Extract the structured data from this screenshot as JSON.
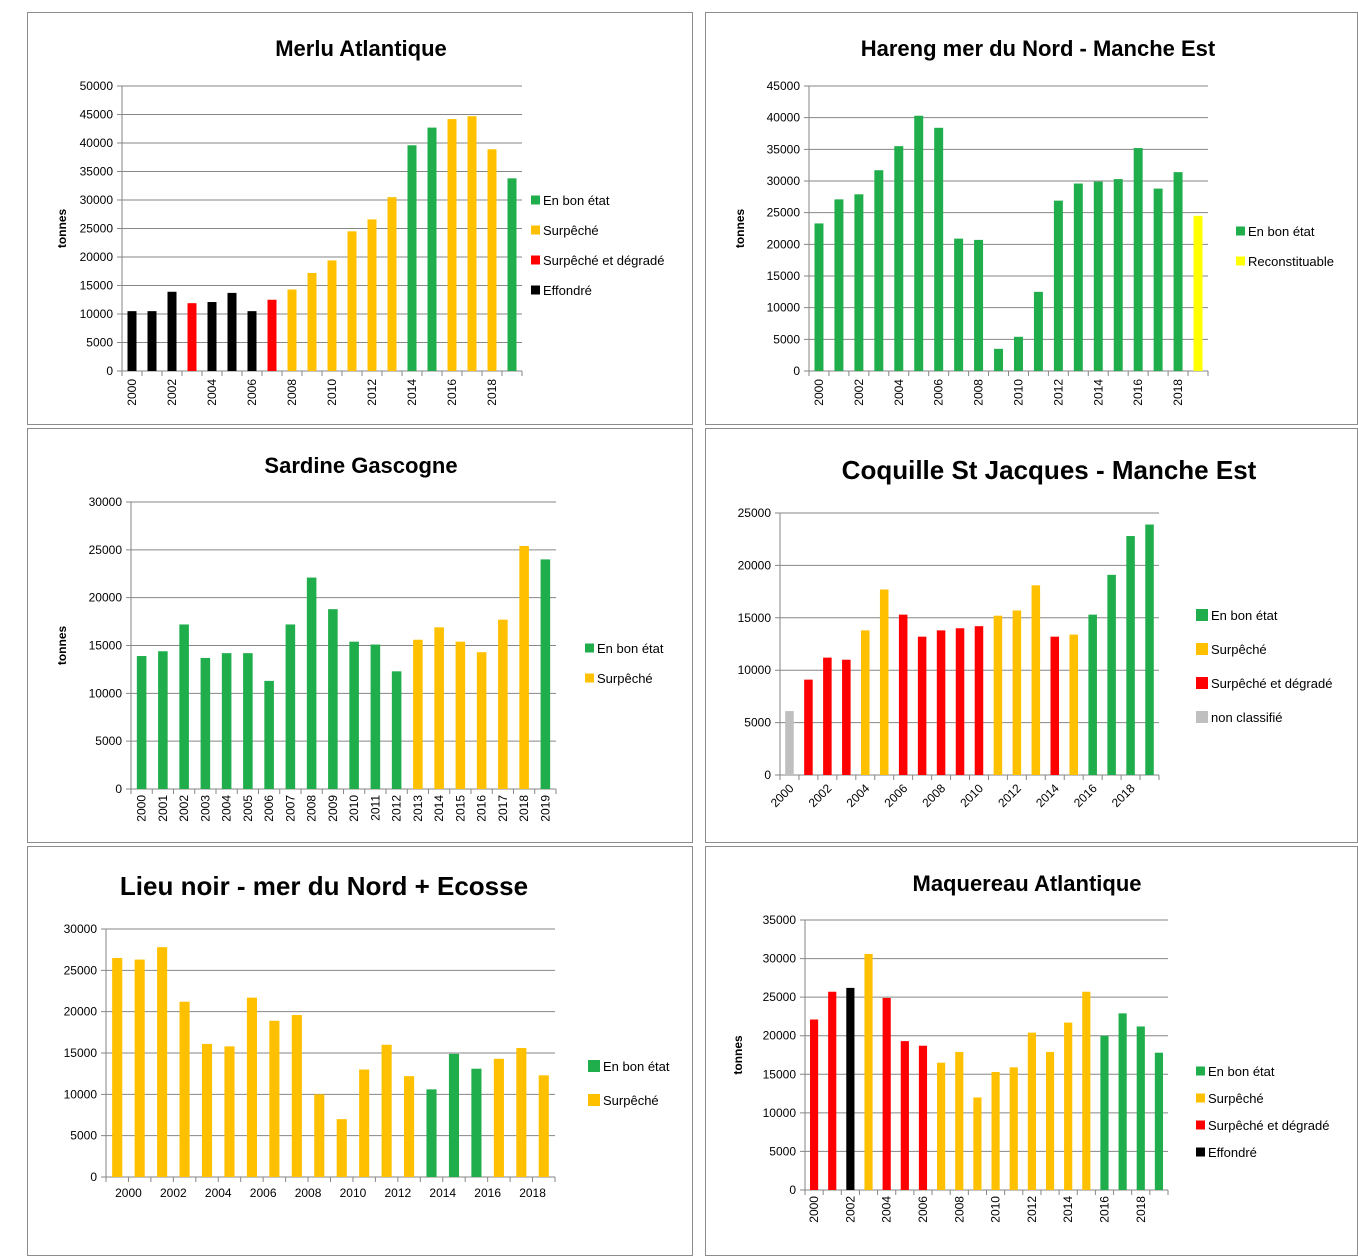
{
  "colors": {
    "En bon état": "#1fae4b",
    "Surpêché": "#ffc000",
    "Surpêché et dégradé": "#ff0000",
    "Effondré": "#000000",
    "Reconstituable": "#ffff00",
    "non classifié": "#bfbfbf"
  },
  "chart_data": [
    {
      "type": "bar",
      "title": "Merlu Atlantique",
      "ylabel": "tonnes",
      "xlabel": "",
      "ylim": [
        0,
        50000
      ],
      "yticks": [
        0,
        5000,
        10000,
        15000,
        20000,
        25000,
        30000,
        35000,
        40000,
        45000,
        50000
      ],
      "categories": [
        "2000",
        "2001",
        "2002",
        "2003",
        "2004",
        "2005",
        "2006",
        "2007",
        "2008",
        "2009",
        "2010",
        "2011",
        "2012",
        "2013",
        "2014",
        "2015",
        "2016",
        "2017",
        "2018",
        "2019"
      ],
      "xtick_labels": [
        "2000",
        "",
        "2002",
        "",
        "2004",
        "",
        "2006",
        "",
        "2008",
        "",
        "2010",
        "",
        "2012",
        "",
        "2014",
        "",
        "2016",
        "",
        "2018",
        ""
      ],
      "tick_rotation": -90,
      "values": [
        10500,
        10500,
        13900,
        11900,
        12100,
        13700,
        10500,
        12500,
        14300,
        17200,
        19400,
        24500,
        26600,
        30500,
        39600,
        42700,
        44200,
        44700,
        38900,
        33800
      ],
      "status": [
        "Effondré",
        "Effondré",
        "Effondré",
        "Surpêché et dégradé",
        "Effondré",
        "Effondré",
        "Effondré",
        "Surpêché et dégradé",
        "Surpêché",
        "Surpêché",
        "Surpêché",
        "Surpêché",
        "Surpêché",
        "Surpêché",
        "En bon état",
        "En bon état",
        "Surpêché",
        "Surpêché",
        "Surpêché",
        "En bon état"
      ],
      "legend": [
        "En bon état",
        "Surpêché",
        "Surpêché et dégradé",
        "Effondré"
      ],
      "legend_position": "right",
      "grid": true
    },
    {
      "type": "bar",
      "title": "Hareng mer du Nord - Manche Est",
      "ylabel": "tonnes",
      "xlabel": "",
      "ylim": [
        0,
        45000
      ],
      "yticks": [
        0,
        5000,
        10000,
        15000,
        20000,
        25000,
        30000,
        35000,
        40000,
        45000
      ],
      "categories": [
        "2000",
        "2001",
        "2002",
        "2003",
        "2004",
        "2005",
        "2006",
        "2007",
        "2008",
        "2009",
        "2010",
        "2011",
        "2012",
        "2013",
        "2014",
        "2015",
        "2016",
        "2017",
        "2018",
        "2019"
      ],
      "xtick_labels": [
        "2000",
        "",
        "2002",
        "",
        "2004",
        "",
        "2006",
        "",
        "2008",
        "",
        "2010",
        "",
        "2012",
        "",
        "2014",
        "",
        "2016",
        "",
        "2018",
        ""
      ],
      "tick_rotation": -90,
      "values": [
        23300,
        27100,
        27900,
        31700,
        35500,
        40300,
        38400,
        20900,
        20700,
        3500,
        5400,
        12500,
        26900,
        29600,
        29900,
        30300,
        35200,
        28800,
        31400,
        24500
      ],
      "status": [
        "En bon état",
        "En bon état",
        "En bon état",
        "En bon état",
        "En bon état",
        "En bon état",
        "En bon état",
        "En bon état",
        "En bon état",
        "En bon état",
        "En bon état",
        "En bon état",
        "En bon état",
        "En bon état",
        "En bon état",
        "En bon état",
        "En bon état",
        "En bon état",
        "En bon état",
        "Reconstituable"
      ],
      "legend": [
        "En bon état",
        "Reconstituable"
      ],
      "legend_position": "right",
      "grid": true
    },
    {
      "type": "bar",
      "title": "Sardine Gascogne",
      "ylabel": "tonnes",
      "xlabel": "",
      "ylim": [
        0,
        30000
      ],
      "yticks": [
        0,
        5000,
        10000,
        15000,
        20000,
        25000,
        30000
      ],
      "categories": [
        "2000",
        "2001",
        "2002",
        "2003",
        "2004",
        "2005",
        "2006",
        "2007",
        "2008",
        "2009",
        "2010",
        "2011",
        "2012",
        "2013",
        "2014",
        "2015",
        "2016",
        "2017",
        "2018",
        "2019"
      ],
      "xtick_labels": [
        "2000",
        "2001",
        "2002",
        "2003",
        "2004",
        "2005",
        "2006",
        "2007",
        "2008",
        "2009",
        "2010",
        "2011",
        "2012",
        "2013",
        "2014",
        "2015",
        "2016",
        "2017",
        "2018",
        "2019"
      ],
      "tick_rotation": -90,
      "values": [
        13900,
        14400,
        17200,
        13700,
        14200,
        14200,
        11300,
        17200,
        22100,
        18800,
        15400,
        15100,
        12300,
        15600,
        16900,
        15400,
        14300,
        17700,
        25400,
        24000
      ],
      "status": [
        "En bon état",
        "En bon état",
        "En bon état",
        "En bon état",
        "En bon état",
        "En bon état",
        "En bon état",
        "En bon état",
        "En bon état",
        "En bon état",
        "En bon état",
        "En bon état",
        "En bon état",
        "Surpêché",
        "Surpêché",
        "Surpêché",
        "Surpêché",
        "Surpêché",
        "Surpêché",
        "En bon état"
      ],
      "legend": [
        "En bon état",
        "Surpêché"
      ],
      "legend_position": "right",
      "grid": true
    },
    {
      "type": "bar",
      "title": "Coquille St Jacques - Manche Est",
      "ylabel": "",
      "xlabel": "",
      "ylim": [
        0,
        25000
      ],
      "yticks": [
        0,
        5000,
        10000,
        15000,
        20000,
        25000
      ],
      "categories": [
        "2000",
        "2001",
        "2002",
        "2003",
        "2004",
        "2005",
        "2006",
        "2007",
        "2008",
        "2009",
        "2010",
        "2011",
        "2012",
        "2013",
        "2014",
        "2015",
        "2016",
        "2017",
        "2018",
        "2019"
      ],
      "xtick_labels": [
        "2000",
        "",
        "2002",
        "",
        "2004",
        "",
        "2006",
        "",
        "2008",
        "",
        "2010",
        "",
        "2012",
        "",
        "2014",
        "",
        "2016",
        "",
        "2018",
        ""
      ],
      "tick_rotation": -45,
      "values": [
        6100,
        9100,
        11200,
        11000,
        13800,
        17700,
        15300,
        13200,
        13800,
        14000,
        14200,
        15200,
        15700,
        18100,
        13200,
        13400,
        15300,
        19100,
        22800,
        23900
      ],
      "status": [
        "non classifié",
        "Surpêché et dégradé",
        "Surpêché et dégradé",
        "Surpêché et dégradé",
        "Surpêché",
        "Surpêché",
        "Surpêché et dégradé",
        "Surpêché et dégradé",
        "Surpêché et dégradé",
        "Surpêché et dégradé",
        "Surpêché et dégradé",
        "Surpêché",
        "Surpêché",
        "Surpêché",
        "Surpêché et dégradé",
        "Surpêché",
        "En bon état",
        "En bon état",
        "En bon état",
        "En bon état"
      ],
      "legend": [
        "En bon état",
        "Surpêché",
        "Surpêché et dégradé",
        "non classifié"
      ],
      "legend_position": "right",
      "grid": true
    },
    {
      "type": "bar",
      "title": "Lieu noir - mer du Nord + Ecosse",
      "ylabel": "",
      "xlabel": "",
      "ylim": [
        0,
        30000
      ],
      "yticks": [
        0,
        5000,
        10000,
        15000,
        20000,
        25000,
        30000
      ],
      "categories": [
        "2000",
        "2001",
        "2002",
        "2003",
        "2004",
        "2005",
        "2006",
        "2007",
        "2008",
        "2009",
        "2010",
        "2011",
        "2012",
        "2013",
        "2014",
        "2015",
        "2016",
        "2017",
        "2018",
        "2019"
      ],
      "xtick_labels": [
        "2000",
        "",
        "2002",
        "",
        "2004",
        "",
        "2006",
        "",
        "2008",
        "",
        "2010",
        "",
        "2012",
        "",
        "2014",
        "",
        "2016",
        "",
        "2018",
        ""
      ],
      "tick_rotation": 0,
      "values": [
        26500,
        26300,
        27800,
        21200,
        16100,
        15800,
        21700,
        18900,
        19600,
        10000,
        7000,
        13000,
        16000,
        12200,
        10600,
        14900,
        13100,
        14300,
        15600,
        12300
      ],
      "status": [
        "Surpêché",
        "Surpêché",
        "Surpêché",
        "Surpêché",
        "Surpêché",
        "Surpêché",
        "Surpêché",
        "Surpêché",
        "Surpêché",
        "Surpêché",
        "Surpêché",
        "Surpêché",
        "Surpêché",
        "Surpêché",
        "En bon état",
        "En bon état",
        "En bon état",
        "Surpêché",
        "Surpêché",
        "Surpêché"
      ],
      "legend": [
        "En bon état",
        "Surpêché"
      ],
      "legend_position": "right",
      "grid": true
    },
    {
      "type": "bar",
      "title": "Maquereau Atlantique",
      "ylabel": "tonnes",
      "xlabel": "",
      "ylim": [
        0,
        35000
      ],
      "yticks": [
        0,
        5000,
        10000,
        15000,
        20000,
        25000,
        30000,
        35000
      ],
      "categories": [
        "2000",
        "2001",
        "2002",
        "2003",
        "2004",
        "2005",
        "2006",
        "2007",
        "2008",
        "2009",
        "2010",
        "2011",
        "2012",
        "2013",
        "2014",
        "2015",
        "2016",
        "2017",
        "2018",
        "2019"
      ],
      "xtick_labels": [
        "2000",
        "",
        "2002",
        "",
        "2004",
        "",
        "2006",
        "",
        "2008",
        "",
        "2010",
        "",
        "2012",
        "",
        "2014",
        "",
        "2016",
        "",
        "2018",
        ""
      ],
      "tick_rotation": -90,
      "values": [
        22100,
        25700,
        26200,
        30600,
        24900,
        19300,
        18700,
        16500,
        17900,
        12000,
        15300,
        15900,
        20400,
        17900,
        21700,
        25700,
        20000,
        22900,
        21200,
        17800
      ],
      "status": [
        "Surpêché et dégradé",
        "Surpêché et dégradé",
        "Effondré",
        "Surpêché",
        "Surpêché et dégradé",
        "Surpêché et dégradé",
        "Surpêché et dégradé",
        "Surpêché",
        "Surpêché",
        "Surpêché",
        "Surpêché",
        "Surpêché",
        "Surpêché",
        "Surpêché",
        "Surpêché",
        "Surpêché",
        "En bon état",
        "En bon état",
        "En bon état",
        "En bon état"
      ],
      "legend": [
        "En bon état",
        "Surpêché",
        "Surpêché et dégradé",
        "Effondré"
      ],
      "legend_position": "right",
      "grid": true
    }
  ]
}
